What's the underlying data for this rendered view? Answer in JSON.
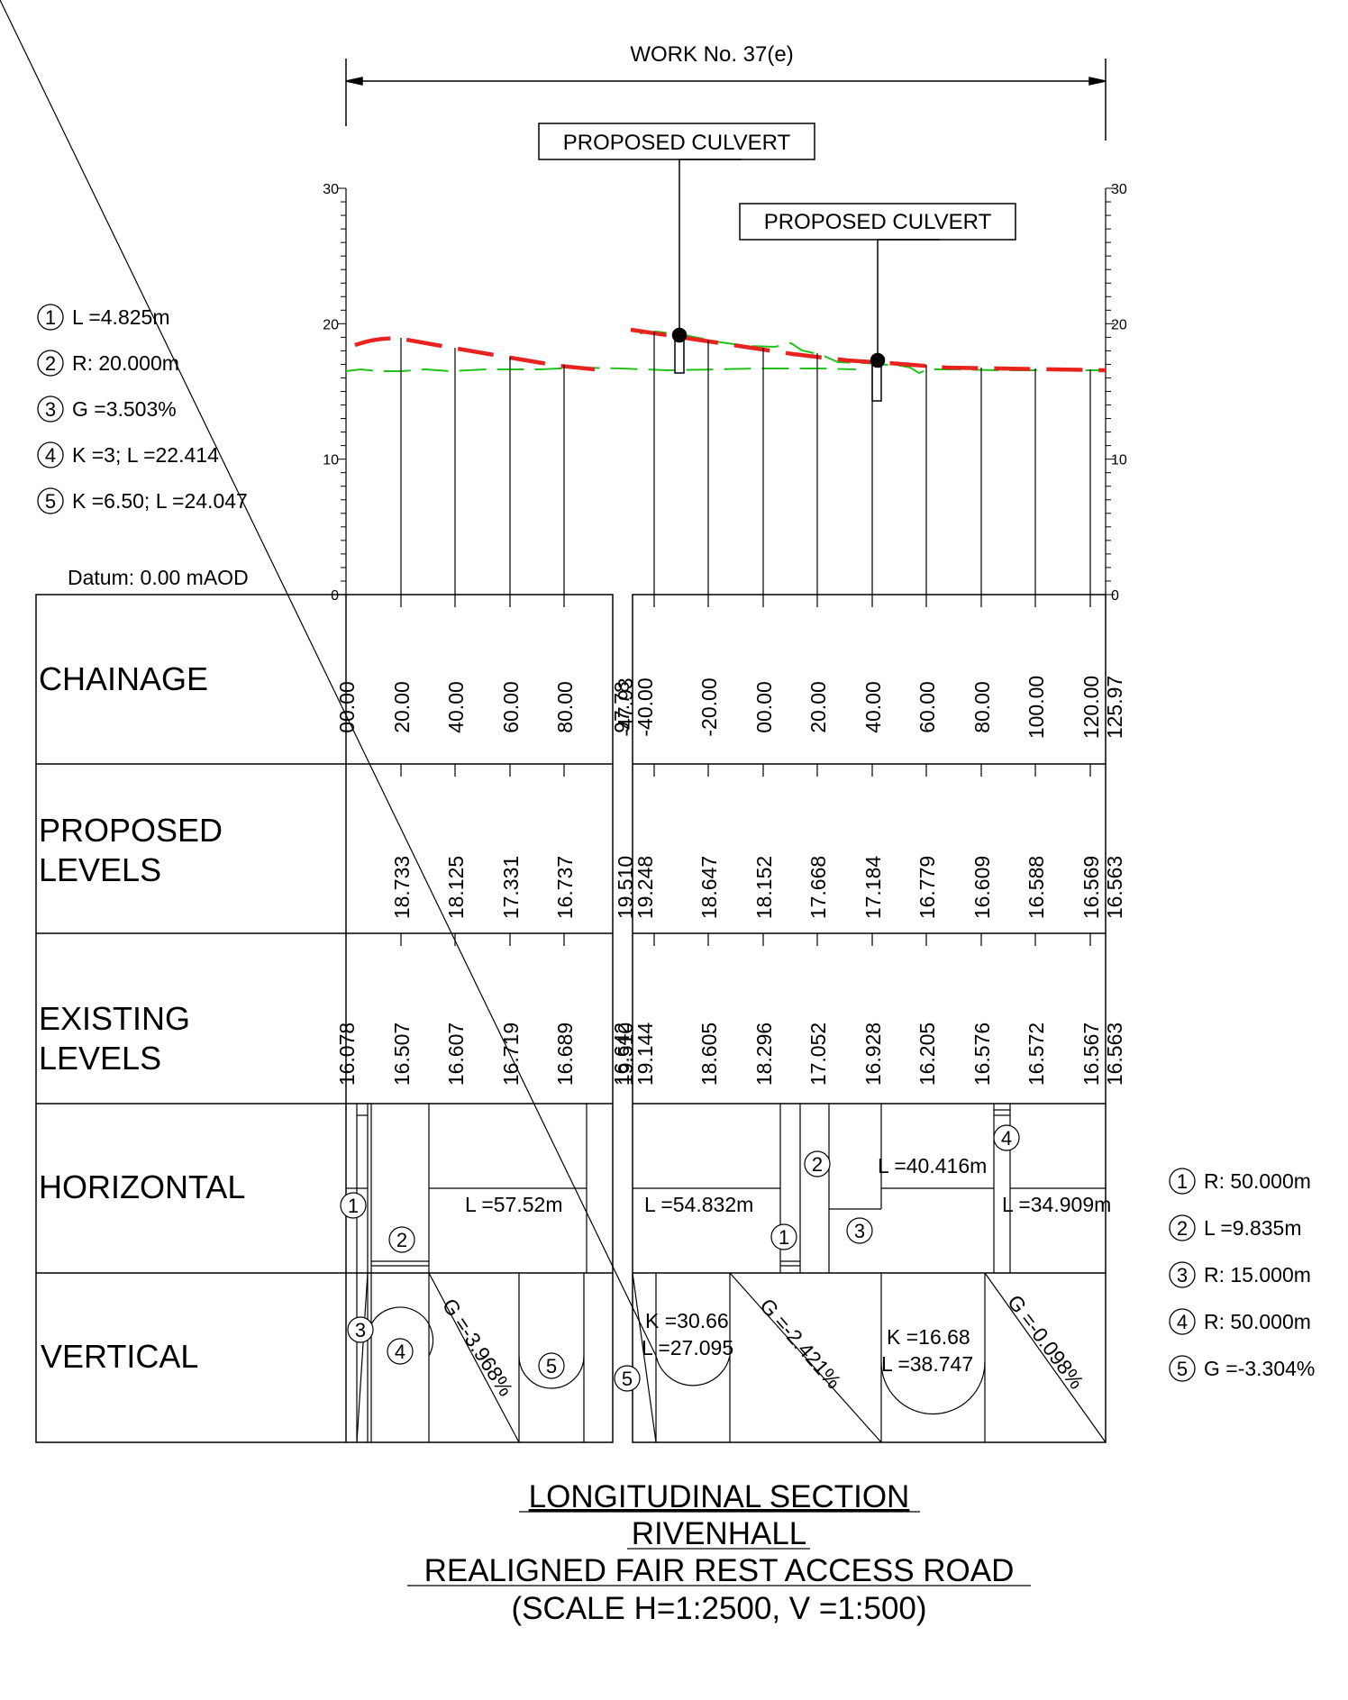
{
  "work_label": "WORK No. 37(e)",
  "callouts": [
    "PROPOSED CULVERT",
    "PROPOSED CULVERT"
  ],
  "axis_ticks": [
    "30",
    "20",
    "10",
    "0"
  ],
  "datum": "Datum: 0.00 mAOD",
  "left_legend": [
    {
      "num": "1",
      "text": "L =4.825m"
    },
    {
      "num": "2",
      "text": "R: 20.000m"
    },
    {
      "num": "3",
      "text": "G =3.503%"
    },
    {
      "num": "4",
      "text": "K =3; L =22.414"
    },
    {
      "num": "5",
      "text": "K =6.50; L =24.047"
    }
  ],
  "right_legend": [
    {
      "num": "1",
      "text": "R: 50.000m"
    },
    {
      "num": "2",
      "text": "L =9.835m"
    },
    {
      "num": "3",
      "text": "R: 15.000m"
    },
    {
      "num": "4",
      "text": "R: 50.000m"
    },
    {
      "num": "5",
      "text": "G =-3.304%"
    }
  ],
  "row_labels": [
    [
      "CHAINAGE"
    ],
    [
      "PROPOSED",
      "LEVELS"
    ],
    [
      "EXISTING",
      "LEVELS"
    ],
    [
      "HORIZONTAL"
    ],
    [
      "VERTICAL"
    ]
  ],
  "sections": [
    {
      "chainage": [
        "00.00",
        "20.00",
        "40.00",
        "60.00",
        "80.00",
        "97.78"
      ],
      "proposed": [
        "",
        "18.733",
        "18.125",
        "17.331",
        "16.737",
        ""
      ],
      "existing": [
        "16.078",
        "16.507",
        "16.607",
        "16.719",
        "16.689",
        "16.642"
      ]
    },
    {
      "chainage": [
        "-47.93",
        "-40.00",
        "-20.00",
        "00.00",
        "20.00",
        "40.00",
        "60.00",
        "80.00",
        "100.00",
        "120.00",
        "125.97"
      ],
      "proposed": [
        "19.510",
        "19.248",
        "18.647",
        "18.152",
        "17.668",
        "17.184",
        "16.779",
        "16.609",
        "16.588",
        "16.569",
        "16.563"
      ],
      "existing": [
        "19.510",
        "19.144",
        "18.605",
        "18.296",
        "17.052",
        "16.928",
        "16.205",
        "16.576",
        "16.572",
        "16.567",
        "16.563"
      ]
    }
  ],
  "horizontal_notes": {
    "s1": [
      "L =57.52m"
    ],
    "s2": [
      "L =54.832m",
      "L =40.416m",
      "L =34.909m"
    ]
  },
  "vertical_notes": {
    "s1": [
      "G =-3.968%"
    ],
    "s2": [
      "K =30.66",
      "L =27.095",
      "G =-2.421%",
      "K =16.68",
      "L =38.747",
      "G =-0.098%"
    ]
  },
  "marker_numbers": {
    "s1_horizontal": [
      "1",
      "2"
    ],
    "s1_vertical": [
      "3",
      "4",
      "5"
    ],
    "s2_horizontal": [
      "2",
      "4",
      "1",
      "3"
    ],
    "s2_vertical": [
      "5"
    ]
  },
  "title_lines": [
    "LONGITUDINAL SECTION",
    "RIVENHALL",
    "REALIGNED FAIR REST ACCESS ROAD",
    "(SCALE H=1:2500,  V =1:500)"
  ],
  "colors": {
    "proposed_line": "#e8231f",
    "existing_line": "#22c21c",
    "linework": "#000000"
  }
}
